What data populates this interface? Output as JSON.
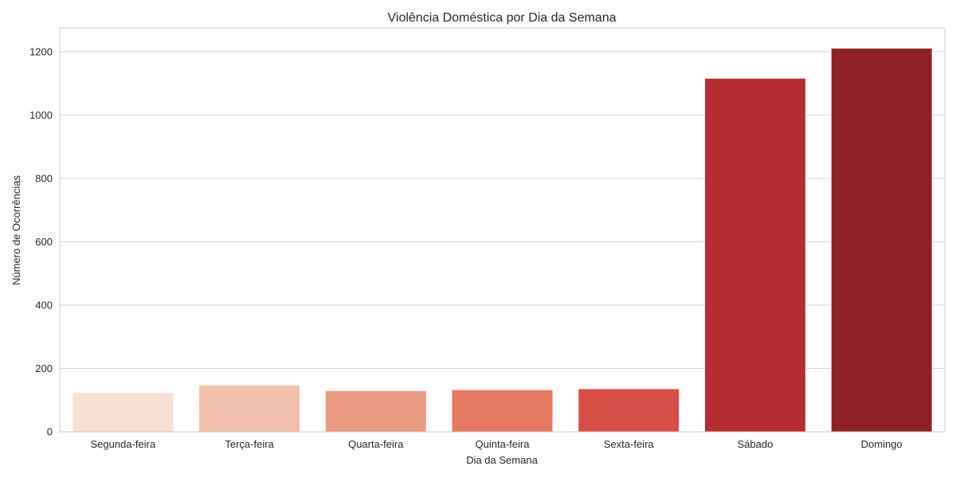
{
  "chart_data": {
    "type": "bar",
    "title": "Violência Doméstica por Dia da Semana",
    "xlabel": "Dia da Semana",
    "ylabel": "Número de Ocorrências",
    "categories": [
      "Segunda-feira",
      "Terça-feira",
      "Quarta-feira",
      "Quinta-feira",
      "Sexta-feira",
      "Sábado",
      "Domingo"
    ],
    "values": [
      124,
      148,
      130,
      133,
      136,
      1116,
      1211
    ],
    "colors": [
      "#f9e0d5",
      "#f1bfa9",
      "#ea9c82",
      "#e57861",
      "#d54f46",
      "#b52d31",
      "#8f2026"
    ],
    "yticks": [
      0,
      200,
      400,
      600,
      800,
      1000,
      1200
    ],
    "ylim": [
      0,
      1275
    ],
    "grid": true,
    "legend": "none"
  }
}
